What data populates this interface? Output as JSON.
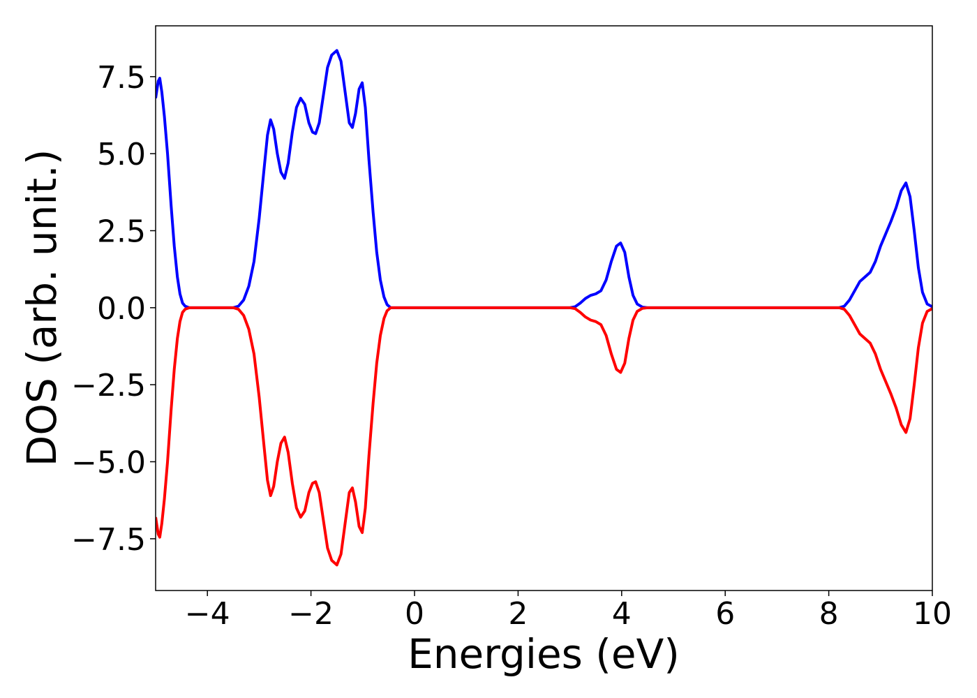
{
  "chart_data": {
    "type": "line",
    "xlabel": "Energies (eV)",
    "ylabel": "DOS (arb. unit.)",
    "xlim": [
      -5,
      10
    ],
    "ylim": [
      -9.18,
      9.15
    ],
    "xticks": [
      {
        "value": -4,
        "label": "−4"
      },
      {
        "value": -2,
        "label": "−2"
      },
      0,
      2,
      4,
      6,
      8,
      10
    ],
    "yticks": [
      {
        "value": -7.5,
        "label": "−7.5"
      },
      {
        "value": -5,
        "label": "−5.0"
      },
      {
        "value": -2.5,
        "label": "−2.5"
      },
      {
        "value": 0,
        "label": "0.0"
      },
      2.5,
      {
        "value": 5,
        "label": "5.0"
      },
      7.5
    ],
    "grid": false,
    "x": [
      -5,
      -4.95,
      -4.92,
      -4.88,
      -4.83,
      -4.77,
      -4.7,
      -4.64,
      -4.58,
      -4.53,
      -4.48,
      -4.43,
      -4.35,
      -3.5,
      -3.4,
      -3.3,
      -3.2,
      -3.1,
      -3.0,
      -2.9,
      -2.84,
      -2.78,
      -2.72,
      -2.65,
      -2.58,
      -2.51,
      -2.44,
      -2.36,
      -2.28,
      -2.2,
      -2.12,
      -2.04,
      -1.97,
      -1.91,
      -1.84,
      -1.76,
      -1.68,
      -1.6,
      -1.5,
      -1.42,
      -1.34,
      -1.26,
      -1.2,
      -1.14,
      -1.07,
      -1.01,
      -0.95,
      -0.88,
      -0.8,
      -0.73,
      -0.66,
      -0.59,
      -0.53,
      -0.46,
      3.0,
      3.1,
      3.2,
      3.3,
      3.4,
      3.5,
      3.6,
      3.7,
      3.8,
      3.9,
      3.98,
      4.06,
      4.14,
      4.22,
      4.3,
      4.4,
      4.5,
      8.2,
      8.3,
      8.4,
      8.5,
      8.6,
      8.7,
      8.8,
      8.9,
      9.0,
      9.1,
      9.2,
      9.3,
      9.4,
      9.49,
      9.57,
      9.65,
      9.73,
      9.81,
      9.9,
      10
    ],
    "series": [
      {
        "color": "#0000ff",
        "values": [
          6.8,
          7.35,
          7.45,
          7.0,
          6.2,
          5.0,
          3.3,
          2.0,
          1.0,
          0.45,
          0.15,
          0.05,
          0,
          0,
          0.05,
          0.25,
          0.7,
          1.5,
          2.9,
          4.6,
          5.6,
          6.1,
          5.8,
          5.0,
          4.4,
          4.2,
          4.7,
          5.7,
          6.5,
          6.8,
          6.6,
          6.0,
          5.7,
          5.65,
          6.0,
          6.9,
          7.8,
          8.2,
          8.35,
          8.0,
          7.0,
          6.0,
          5.85,
          6.3,
          7.1,
          7.3,
          6.5,
          4.8,
          3.1,
          1.8,
          0.9,
          0.35,
          0.1,
          0,
          0,
          0.03,
          0.15,
          0.3,
          0.4,
          0.45,
          0.55,
          0.9,
          1.5,
          2.0,
          2.1,
          1.8,
          1.0,
          0.4,
          0.12,
          0.02,
          0,
          0,
          0.05,
          0.25,
          0.55,
          0.85,
          1.0,
          1.15,
          1.5,
          2.0,
          2.4,
          2.8,
          3.25,
          3.8,
          4.05,
          3.6,
          2.5,
          1.3,
          0.5,
          0.12,
          0.03
        ]
      },
      {
        "color": "#ff0000",
        "values": [
          -6.8,
          -7.35,
          -7.45,
          -7.0,
          -6.2,
          -5.0,
          -3.3,
          -2.0,
          -1.0,
          -0.45,
          -0.15,
          -0.05,
          0,
          0,
          -0.05,
          -0.25,
          -0.7,
          -1.5,
          -2.9,
          -4.6,
          -5.6,
          -6.1,
          -5.8,
          -5.0,
          -4.4,
          -4.2,
          -4.7,
          -5.7,
          -6.5,
          -6.8,
          -6.6,
          -6.0,
          -5.7,
          -5.65,
          -6.0,
          -6.9,
          -7.8,
          -8.2,
          -8.35,
          -8.0,
          -7.0,
          -6.0,
          -5.85,
          -6.3,
          -7.1,
          -7.3,
          -6.5,
          -4.8,
          -3.1,
          -1.8,
          -0.9,
          -0.35,
          -0.1,
          0,
          0,
          -0.03,
          -0.15,
          -0.3,
          -0.4,
          -0.45,
          -0.55,
          -0.9,
          -1.5,
          -2.0,
          -2.1,
          -1.8,
          -1.0,
          -0.4,
          -0.12,
          -0.02,
          0,
          0,
          -0.05,
          -0.25,
          -0.55,
          -0.85,
          -1.0,
          -1.15,
          -1.5,
          -2.0,
          -2.4,
          -2.8,
          -3.25,
          -3.8,
          -4.05,
          -3.6,
          -2.5,
          -1.3,
          -0.5,
          -0.12,
          -0.03
        ]
      }
    ]
  }
}
